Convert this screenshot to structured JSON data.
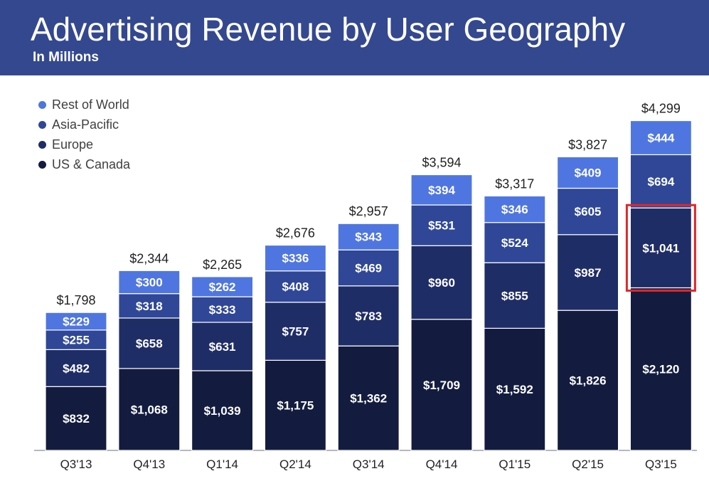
{
  "header": {
    "title": "Advertising Revenue by User Geography",
    "subtitle": "In Millions"
  },
  "colors": {
    "header_bg": "#34488f",
    "rest_of_world": "#4f76e0",
    "asia_pacific": "#2f4796",
    "europe": "#1f2d66",
    "us_canada": "#131c3f",
    "highlight": "#e0262a",
    "axis": "#9aa0b4"
  },
  "chart_data": {
    "type": "bar",
    "stacked": true,
    "title": "Advertising Revenue by User Geography",
    "subtitle": "In Millions",
    "categories": [
      "Q3'13",
      "Q4'13",
      "Q1'14",
      "Q2'14",
      "Q3'14",
      "Q4'14",
      "Q1'15",
      "Q2'15",
      "Q3'15"
    ],
    "series": [
      {
        "name": "US & Canada",
        "values": [
          832,
          1068,
          1039,
          1175,
          1362,
          1709,
          1592,
          1826,
          2120
        ],
        "labels": [
          "$832",
          "$1,068",
          "$1,039",
          "$1,175",
          "$1,362",
          "$1,709",
          "$1,592",
          "$1,826",
          "$2,120"
        ]
      },
      {
        "name": "Europe",
        "values": [
          482,
          658,
          631,
          757,
          783,
          960,
          855,
          987,
          1041
        ],
        "labels": [
          "$482",
          "$658",
          "$631",
          "$757",
          "$783",
          "$960",
          "$855",
          "$987",
          "$1,041"
        ]
      },
      {
        "name": "Asia-Pacific",
        "values": [
          255,
          318,
          333,
          408,
          469,
          531,
          524,
          605,
          694
        ],
        "labels": [
          "$255",
          "$318",
          "$333",
          "$408",
          "$469",
          "$531",
          "$524",
          "$605",
          "$694"
        ]
      },
      {
        "name": "Rest of World",
        "values": [
          229,
          300,
          262,
          336,
          343,
          394,
          346,
          409,
          444
        ],
        "labels": [
          "$229",
          "$300",
          "$262",
          "$336",
          "$343",
          "$394",
          "$346",
          "$409",
          "$444"
        ]
      }
    ],
    "totals": [
      1798,
      2344,
      2265,
      2676,
      2957,
      3594,
      3317,
      3827,
      4299
    ],
    "total_labels": [
      "$1,798",
      "$2,344",
      "$2,265",
      "$2,676",
      "$2,957",
      "$3,594",
      "$3,317",
      "$3,827",
      "$4,299"
    ],
    "legend": [
      "Rest of World",
      "Asia-Pacific",
      "Europe",
      "US & Canada"
    ],
    "legend_placement": "top-left",
    "highlight": {
      "category": "Q3'15",
      "series": "Europe"
    },
    "grid": false,
    "ylim": [
      0,
      4500
    ]
  }
}
